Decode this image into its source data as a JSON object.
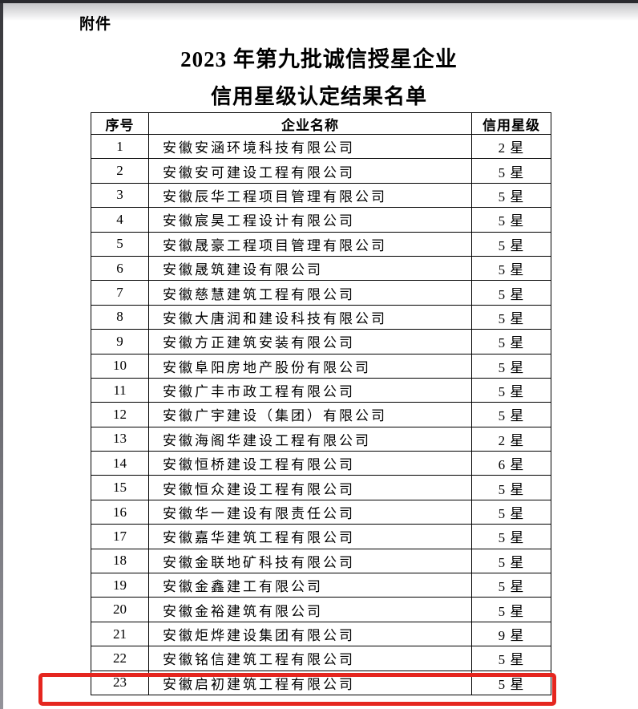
{
  "document": {
    "attachment_label": "附件",
    "title_line1": "2023 年第九批诚信授星企业",
    "title_line2": "信用星级认定结果名单"
  },
  "table": {
    "headers": [
      "序号",
      "企业名称",
      "信用星级"
    ],
    "rows": [
      {
        "no": "1",
        "name": "安徽安涵环境科技有限公司",
        "stars": "2 星"
      },
      {
        "no": "2",
        "name": "安徽安可建设工程有限公司",
        "stars": "5 星"
      },
      {
        "no": "3",
        "name": "安徽辰华工程项目管理有限公司",
        "stars": "5 星"
      },
      {
        "no": "4",
        "name": "安徽宸昊工程设计有限公司",
        "stars": "5 星"
      },
      {
        "no": "5",
        "name": "安徽晟豪工程项目管理有限公司",
        "stars": "5 星"
      },
      {
        "no": "6",
        "name": "安徽晟筑建设有限公司",
        "stars": "5 星"
      },
      {
        "no": "7",
        "name": "安徽慈慧建筑工程有限公司",
        "stars": "5 星"
      },
      {
        "no": "8",
        "name": "安徽大唐润和建设科技有限公司",
        "stars": "5 星"
      },
      {
        "no": "9",
        "name": "安徽方正建筑安装有限公司",
        "stars": "5 星"
      },
      {
        "no": "10",
        "name": "安徽阜阳房地产股份有限公司",
        "stars": "5 星"
      },
      {
        "no": "11",
        "name": "安徽广丰市政工程有限公司",
        "stars": "5 星"
      },
      {
        "no": "12",
        "name": "安徽广宇建设（集团）有限公司",
        "stars": "5 星"
      },
      {
        "no": "13",
        "name": "安徽海阁华建设工程有限公司",
        "stars": "2 星"
      },
      {
        "no": "14",
        "name": "安徽恒桥建设工程有限公司",
        "stars": "6 星"
      },
      {
        "no": "15",
        "name": "安徽恒众建设工程有限公司",
        "stars": "5 星"
      },
      {
        "no": "16",
        "name": "安徽华一建设有限责任公司",
        "stars": "5 星"
      },
      {
        "no": "17",
        "name": "安徽嘉华建筑工程有限公司",
        "stars": "5 星"
      },
      {
        "no": "18",
        "name": "安徽金联地矿科技有限公司",
        "stars": "5 星"
      },
      {
        "no": "19",
        "name": "安徽金鑫建工有限公司",
        "stars": "5 星"
      },
      {
        "no": "20",
        "name": "安徽金裕建筑有限公司",
        "stars": "5 星"
      },
      {
        "no": "21",
        "name": "安徽炬烨建设集团有限公司",
        "stars": "9 星"
      },
      {
        "no": "22",
        "name": "安徽铭信建筑工程有限公司",
        "stars": "5 星"
      },
      {
        "no": "23",
        "name": "安徽启初建筑工程有限公司",
        "stars": "5 星"
      }
    ]
  },
  "highlight": {
    "highlighted_row_no": "23",
    "color": "#e5261f"
  },
  "colors": {
    "page_background": "#ffffff",
    "text": "#000000",
    "table_border": "#000000",
    "top_edge": "#2a2a2e"
  }
}
